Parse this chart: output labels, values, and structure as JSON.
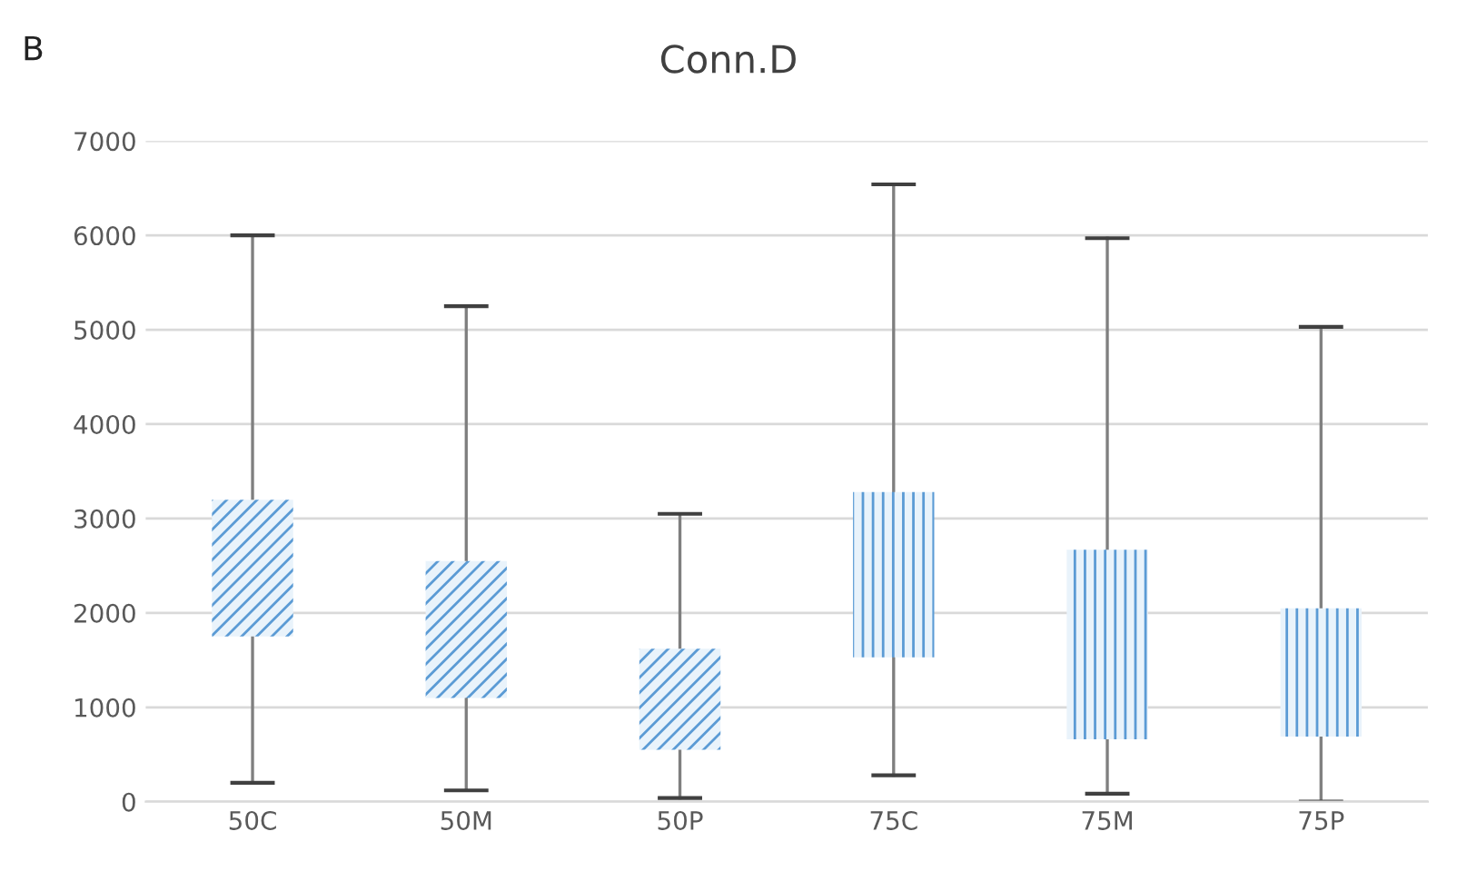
{
  "chart_data": {
    "type": "box",
    "title": "Conn.D",
    "annotations": [
      "B"
    ],
    "categories": [
      "50C",
      "50M",
      "50P",
      "75C",
      "75M",
      "75P"
    ],
    "series": [
      {
        "color": "#5b9bd5",
        "boxes": [
          {
            "low": 200,
            "q1": 1750,
            "q3": 3200,
            "high": 6000
          },
          {
            "low": 120,
            "q1": 1100,
            "q3": 2550,
            "high": 5250
          },
          {
            "low": 40,
            "q1": 550,
            "q3": 1620,
            "high": 3050
          },
          null,
          null,
          null
        ]
      },
      {
        "color": "#5b9bd5",
        "boxes": [
          null,
          null,
          null,
          {
            "low": 280,
            "q1": 1530,
            "q3": 3280,
            "high": 6540
          },
          {
            "low": 85,
            "q1": 660,
            "q3": 2670,
            "high": 5970
          },
          {
            "low": 0,
            "q1": 690,
            "q3": 2050,
            "high": 5030
          }
        ]
      }
    ],
    "ylim": [
      0,
      7000
    ],
    "yticks": [
      0,
      1000,
      2000,
      3000,
      4000,
      5000,
      6000,
      7000
    ],
    "grid": "y",
    "legend": false
  }
}
